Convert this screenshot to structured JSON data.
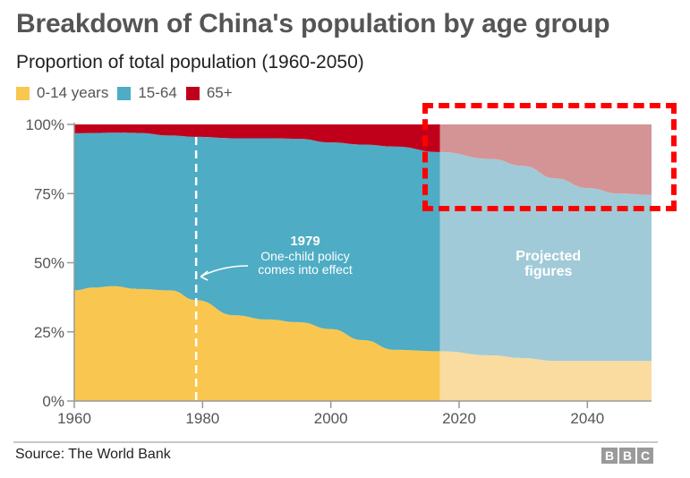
{
  "header": {
    "title": "Breakdown of China's population by age group",
    "subtitle": "Proportion of total population (1960-2050)"
  },
  "legend": [
    {
      "label": "0-14 years",
      "color": "#f9c74f"
    },
    {
      "label": "15-64",
      "color": "#4eacc4"
    },
    {
      "label": "65+",
      "color": "#c0001a"
    }
  ],
  "footer": {
    "source": "Source: The World Bank",
    "logo_letters": [
      "B",
      "B",
      "C"
    ]
  },
  "chart_data": {
    "type": "area",
    "stacked": true,
    "title": "Breakdown of China's population by age group",
    "subtitle": "Proportion of total population (1960-2050)",
    "xlabel": "",
    "ylabel": "",
    "xlim": [
      1960,
      2050
    ],
    "ylim": [
      0,
      100
    ],
    "x_ticks": [
      1960,
      1980,
      2000,
      2020,
      2040
    ],
    "x_tick_labels": [
      "1960",
      "1980",
      "2000",
      "2020",
      "2040"
    ],
    "y_ticks": [
      0,
      25,
      50,
      75,
      100
    ],
    "y_tick_labels": [
      "0%",
      "25%",
      "50%",
      "75%",
      "100%"
    ],
    "grid": false,
    "legend_position": "top-left",
    "projection_start": 2017,
    "x": [
      1960,
      1963,
      1966,
      1970,
      1975,
      1979,
      1985,
      1990,
      1995,
      2000,
      2005,
      2010,
      2017,
      2025,
      2030,
      2035,
      2040,
      2045,
      2050
    ],
    "series": [
      {
        "name": "0-14 years",
        "color": "#f9c74f",
        "projected_color": "#fadca0",
        "values": [
          40,
          41,
          41.5,
          40.5,
          40,
          36.5,
          31,
          29.5,
          28.5,
          26,
          22,
          18.5,
          18,
          16.5,
          15.5,
          14.5,
          14.5,
          14.5,
          14.5
        ]
      },
      {
        "name": "15-64",
        "color": "#4eacc4",
        "projected_color": "#a1cad8",
        "values": [
          56.8,
          55.9,
          55.5,
          56.4,
          56.0,
          59.0,
          64.0,
          65.5,
          66.3,
          67.5,
          70.7,
          73.5,
          72.0,
          71.0,
          69.5,
          66.0,
          62.5,
          60.5,
          60.0
        ]
      },
      {
        "name": "65+",
        "color": "#c0001a",
        "projected_color": "#d49496",
        "values": [
          3.2,
          3.1,
          3.0,
          3.1,
          4.0,
          4.5,
          5.0,
          5.0,
          5.2,
          6.5,
          7.3,
          8.0,
          10.0,
          12.5,
          15.0,
          19.5,
          23.0,
          25.0,
          25.5
        ]
      }
    ],
    "annotations": [
      {
        "x": 1979,
        "type": "vertical-dashed-line",
        "year_label": "1979",
        "text_line1": "One-child policy",
        "text_line2": "comes into effect"
      },
      {
        "type": "region-label",
        "text_line1": "Projected",
        "text_line2": "figures"
      }
    ]
  }
}
